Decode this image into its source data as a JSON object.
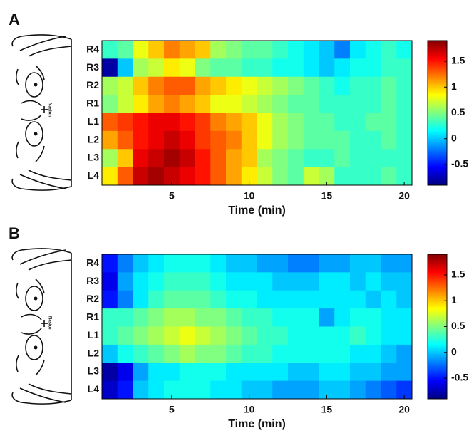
{
  "chart_data": [
    {
      "type": "heatmap",
      "panel_label": "A",
      "xlabel": "Time (min)",
      "annotation": "Nasion",
      "colormap": "jet",
      "rows": [
        "R4",
        "R3",
        "R2",
        "R1",
        "L1",
        "L2",
        "L3",
        "L4"
      ],
      "x": [
        1,
        2,
        3,
        4,
        5,
        6,
        7,
        8,
        9,
        10,
        11,
        12,
        13,
        14,
        15,
        16,
        17,
        18,
        19,
        20
      ],
      "xlim": [
        0.5,
        20.5
      ],
      "xticks": [
        5,
        10,
        15,
        20
      ],
      "clim": [
        -0.9,
        1.9
      ],
      "cticks": [
        -0.5,
        0,
        0.5,
        1,
        1.5
      ],
      "values": [
        [
          0.3,
          0.4,
          0.8,
          1.0,
          1.2,
          1.1,
          1.0,
          0.6,
          0.5,
          0.4,
          0.4,
          0.3,
          0.2,
          0.1,
          0.0,
          -0.2,
          0.1,
          0.2,
          0.3,
          0.2
        ],
        [
          -0.8,
          0.0,
          0.6,
          0.7,
          0.9,
          0.8,
          0.5,
          0.4,
          0.4,
          0.3,
          0.3,
          0.2,
          0.2,
          0.1,
          0.0,
          0.1,
          0.2,
          0.2,
          0.3,
          0.3
        ],
        [
          0.6,
          0.7,
          1.0,
          1.2,
          1.3,
          1.3,
          1.1,
          1.0,
          0.9,
          0.8,
          0.7,
          0.6,
          0.5,
          0.4,
          0.3,
          0.2,
          0.3,
          0.3,
          0.4,
          0.3
        ],
        [
          0.5,
          0.7,
          0.9,
          1.1,
          1.2,
          1.1,
          1.0,
          0.8,
          0.8,
          0.7,
          0.6,
          0.5,
          0.4,
          0.4,
          0.3,
          0.3,
          0.3,
          0.3,
          0.4,
          0.3
        ],
        [
          1.3,
          1.4,
          1.5,
          1.6,
          1.6,
          1.5,
          1.4,
          1.2,
          1.1,
          1.0,
          0.8,
          0.6,
          0.5,
          0.4,
          0.4,
          0.3,
          0.3,
          0.4,
          0.4,
          0.3
        ],
        [
          1.1,
          1.3,
          1.5,
          1.6,
          1.7,
          1.6,
          1.4,
          1.3,
          1.2,
          1.0,
          0.8,
          0.6,
          0.5,
          0.4,
          0.4,
          0.4,
          0.3,
          0.3,
          0.4,
          0.3
        ],
        [
          0.6,
          1.0,
          1.6,
          1.7,
          1.8,
          1.7,
          1.5,
          1.3,
          1.1,
          1.0,
          0.6,
          0.5,
          0.4,
          0.3,
          0.3,
          0.4,
          0.3,
          0.3,
          0.3,
          0.3
        ],
        [
          0.9,
          1.3,
          1.7,
          1.8,
          1.7,
          1.6,
          1.5,
          1.3,
          1.1,
          0.9,
          0.7,
          0.5,
          0.4,
          0.7,
          0.6,
          0.3,
          0.3,
          0.3,
          0.4,
          0.3
        ]
      ]
    },
    {
      "type": "heatmap",
      "panel_label": "B",
      "xlabel": "Time (min)",
      "annotation": "Nasion",
      "colormap": "jet",
      "rows": [
        "R4",
        "R3",
        "R2",
        "R1",
        "L1",
        "L2",
        "L3",
        "L4"
      ],
      "x": [
        1,
        2,
        3,
        4,
        5,
        6,
        7,
        8,
        9,
        10,
        11,
        12,
        13,
        14,
        15,
        16,
        17,
        18,
        19,
        20
      ],
      "xlim": [
        0.5,
        20.5
      ],
      "xticks": [
        5,
        10,
        15,
        20
      ],
      "clim": [
        -0.9,
        1.9
      ],
      "cticks": [
        -0.5,
        0,
        0.5,
        1,
        1.5
      ],
      "values": [
        [
          -0.5,
          -0.2,
          0.0,
          0.1,
          0.2,
          0.2,
          0.2,
          0.1,
          0.0,
          0.0,
          -0.1,
          -0.1,
          -0.2,
          -0.2,
          -0.1,
          -0.1,
          0.0,
          0.0,
          -0.1,
          -0.1
        ],
        [
          -0.6,
          -0.1,
          0.1,
          0.2,
          0.3,
          0.3,
          0.3,
          0.2,
          0.1,
          0.1,
          0.1,
          0.0,
          0.0,
          0.0,
          0.1,
          0.1,
          0.0,
          0.1,
          0.0,
          0.0
        ],
        [
          -0.5,
          -0.2,
          0.1,
          0.3,
          0.4,
          0.4,
          0.4,
          0.3,
          0.2,
          0.2,
          0.1,
          0.1,
          0.1,
          0.1,
          0.1,
          0.1,
          0.1,
          0.0,
          0.1,
          0.0
        ],
        [
          0.3,
          0.3,
          0.4,
          0.5,
          0.6,
          0.6,
          0.5,
          0.5,
          0.4,
          0.3,
          0.3,
          0.2,
          0.2,
          0.2,
          -0.1,
          0.1,
          0.2,
          0.2,
          0.1,
          0.1
        ],
        [
          0.3,
          0.4,
          0.5,
          0.6,
          0.7,
          0.8,
          0.7,
          0.6,
          0.5,
          0.4,
          0.3,
          0.3,
          0.2,
          0.2,
          0.2,
          0.2,
          0.3,
          0.2,
          0.1,
          0.1
        ],
        [
          0.0,
          0.2,
          0.3,
          0.4,
          0.5,
          0.6,
          0.5,
          0.5,
          0.4,
          0.3,
          0.3,
          0.2,
          0.2,
          0.2,
          0.2,
          0.2,
          0.1,
          0.1,
          0.0,
          -0.1
        ],
        [
          -0.8,
          -0.6,
          -0.1,
          0.1,
          0.1,
          0.2,
          0.2,
          0.2,
          0.1,
          0.1,
          0.1,
          0.1,
          0.0,
          0.0,
          0.1,
          0.1,
          0.0,
          0.0,
          -0.1,
          -0.1
        ],
        [
          -0.7,
          -0.5,
          0.0,
          0.1,
          0.2,
          0.2,
          0.2,
          0.1,
          0.1,
          0.0,
          0.0,
          -0.1,
          -0.1,
          -0.1,
          0.0,
          0.0,
          -0.1,
          -0.2,
          -0.3,
          -0.4
        ]
      ]
    }
  ]
}
